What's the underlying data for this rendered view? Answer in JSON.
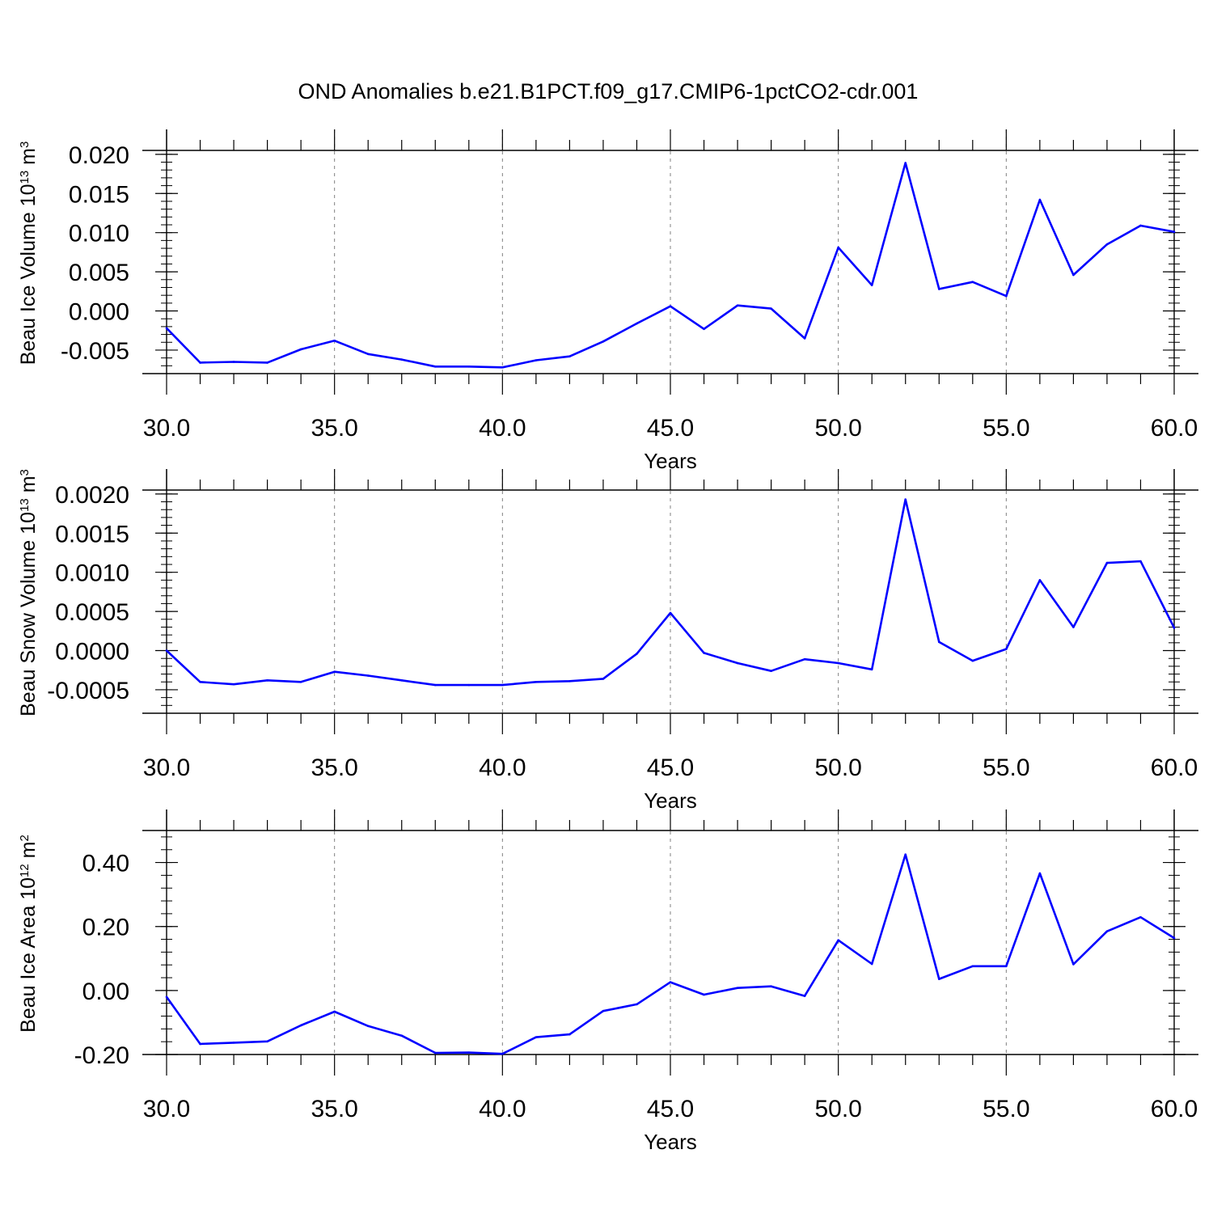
{
  "figure": {
    "title": "OND Anomalies b.e21.B1PCT.f09_g17.CMIP6-1pctCO2-cdr.001"
  },
  "colors": {
    "line": "#0000ff",
    "axis": "#000000",
    "grid": "#808080"
  },
  "chart_data": [
    {
      "type": "line",
      "name": "ice-volume",
      "xlabel": "Years",
      "ylabel_main": "Beau Ice Volume 10",
      "ylabel_sup": "13",
      "ylabel_unit": " m",
      "ylabel_unit_sup": "3",
      "xlim": [
        30,
        60
      ],
      "ylim": [
        -0.008,
        0.0205
      ],
      "xticks": [
        30,
        35,
        40,
        45,
        50,
        55,
        60
      ],
      "xtick_labels": [
        "30.0",
        "35.0",
        "40.0",
        "45.0",
        "50.0",
        "55.0",
        "60.0"
      ],
      "yticks": [
        -0.005,
        0.0,
        0.005,
        0.01,
        0.015,
        0.02
      ],
      "ytick_labels": [
        "-0.005",
        "0.000",
        "0.005",
        "0.010",
        "0.015",
        "0.020"
      ],
      "x": [
        30,
        31,
        32,
        33,
        34,
        35,
        36,
        37,
        38,
        39,
        40,
        41,
        42,
        43,
        44,
        45,
        46,
        47,
        48,
        49,
        50,
        51,
        52,
        53,
        54,
        55,
        56,
        57,
        58,
        59,
        60
      ],
      "y": [
        -0.0022,
        -0.0066,
        -0.0065,
        -0.0066,
        -0.0049,
        -0.0038,
        -0.0055,
        -0.0062,
        -0.0071,
        -0.0071,
        -0.0072,
        -0.0063,
        -0.0058,
        -0.0039,
        -0.0016,
        0.0006,
        -0.0023,
        0.0007,
        0.0003,
        -0.0035,
        0.0081,
        0.0033,
        0.0189,
        0.0028,
        0.0037,
        0.0019,
        0.0142,
        0.0046,
        0.0085,
        0.0109,
        0.0101
      ]
    },
    {
      "type": "line",
      "name": "snow-volume",
      "xlabel": "Years",
      "ylabel_main": "Beau Snow Volume 10",
      "ylabel_sup": "13",
      "ylabel_unit": " m",
      "ylabel_unit_sup": "3",
      "xlim": [
        30,
        60
      ],
      "ylim": [
        -0.0008,
        0.00205
      ],
      "xticks": [
        30,
        35,
        40,
        45,
        50,
        55,
        60
      ],
      "xtick_labels": [
        "30.0",
        "35.0",
        "40.0",
        "45.0",
        "50.0",
        "55.0",
        "60.0"
      ],
      "yticks": [
        -0.0005,
        0.0,
        0.0005,
        0.001,
        0.0015,
        0.002
      ],
      "ytick_labels": [
        "-0.0005",
        "0.0000",
        "0.0005",
        "0.0010",
        "0.0015",
        "0.0020"
      ],
      "x": [
        30,
        31,
        32,
        33,
        34,
        35,
        36,
        37,
        38,
        39,
        40,
        41,
        42,
        43,
        44,
        45,
        46,
        47,
        48,
        49,
        50,
        51,
        52,
        53,
        54,
        55,
        56,
        57,
        58,
        59,
        60
      ],
      "y": [
        0.0,
        -0.0004,
        -0.00043,
        -0.00038,
        -0.0004,
        -0.00027,
        -0.00032,
        -0.00038,
        -0.00044,
        -0.00044,
        -0.00044,
        -0.0004,
        -0.00039,
        -0.00036,
        -4e-05,
        0.00048,
        -3e-05,
        -0.00016,
        -0.00026,
        -0.00011,
        -0.00016,
        -0.00024,
        0.00193,
        0.00011,
        -0.00013,
        2e-05,
        0.0009,
        0.0003,
        0.00112,
        0.00114,
        0.00029
      ]
    },
    {
      "type": "line",
      "name": "ice-area",
      "xlabel": "Years",
      "ylabel_main": "Beau Ice Area 10",
      "ylabel_sup": "12",
      "ylabel_unit": " m",
      "ylabel_unit_sup": "2",
      "xlim": [
        30,
        60
      ],
      "ylim": [
        -0.2,
        0.5
      ],
      "xticks": [
        30,
        35,
        40,
        45,
        50,
        55,
        60
      ],
      "xtick_labels": [
        "30.0",
        "35.0",
        "40.0",
        "45.0",
        "50.0",
        "55.0",
        "60.0"
      ],
      "yticks": [
        -0.2,
        0.0,
        0.2,
        0.4
      ],
      "ytick_labels": [
        "-0.20",
        "0.00",
        "0.20",
        "0.40"
      ],
      "x": [
        30,
        31,
        32,
        33,
        34,
        35,
        36,
        37,
        38,
        39,
        40,
        41,
        42,
        43,
        44,
        45,
        46,
        47,
        48,
        49,
        50,
        51,
        52,
        53,
        54,
        55,
        56,
        57,
        58,
        59,
        60
      ],
      "y": [
        -0.02,
        -0.167,
        -0.163,
        -0.159,
        -0.109,
        -0.066,
        -0.111,
        -0.141,
        -0.195,
        -0.194,
        -0.198,
        -0.146,
        -0.137,
        -0.064,
        -0.043,
        0.026,
        -0.013,
        0.008,
        0.013,
        -0.017,
        0.157,
        0.083,
        0.425,
        0.036,
        0.076,
        0.076,
        0.366,
        0.082,
        0.185,
        0.229,
        0.164
      ]
    }
  ]
}
